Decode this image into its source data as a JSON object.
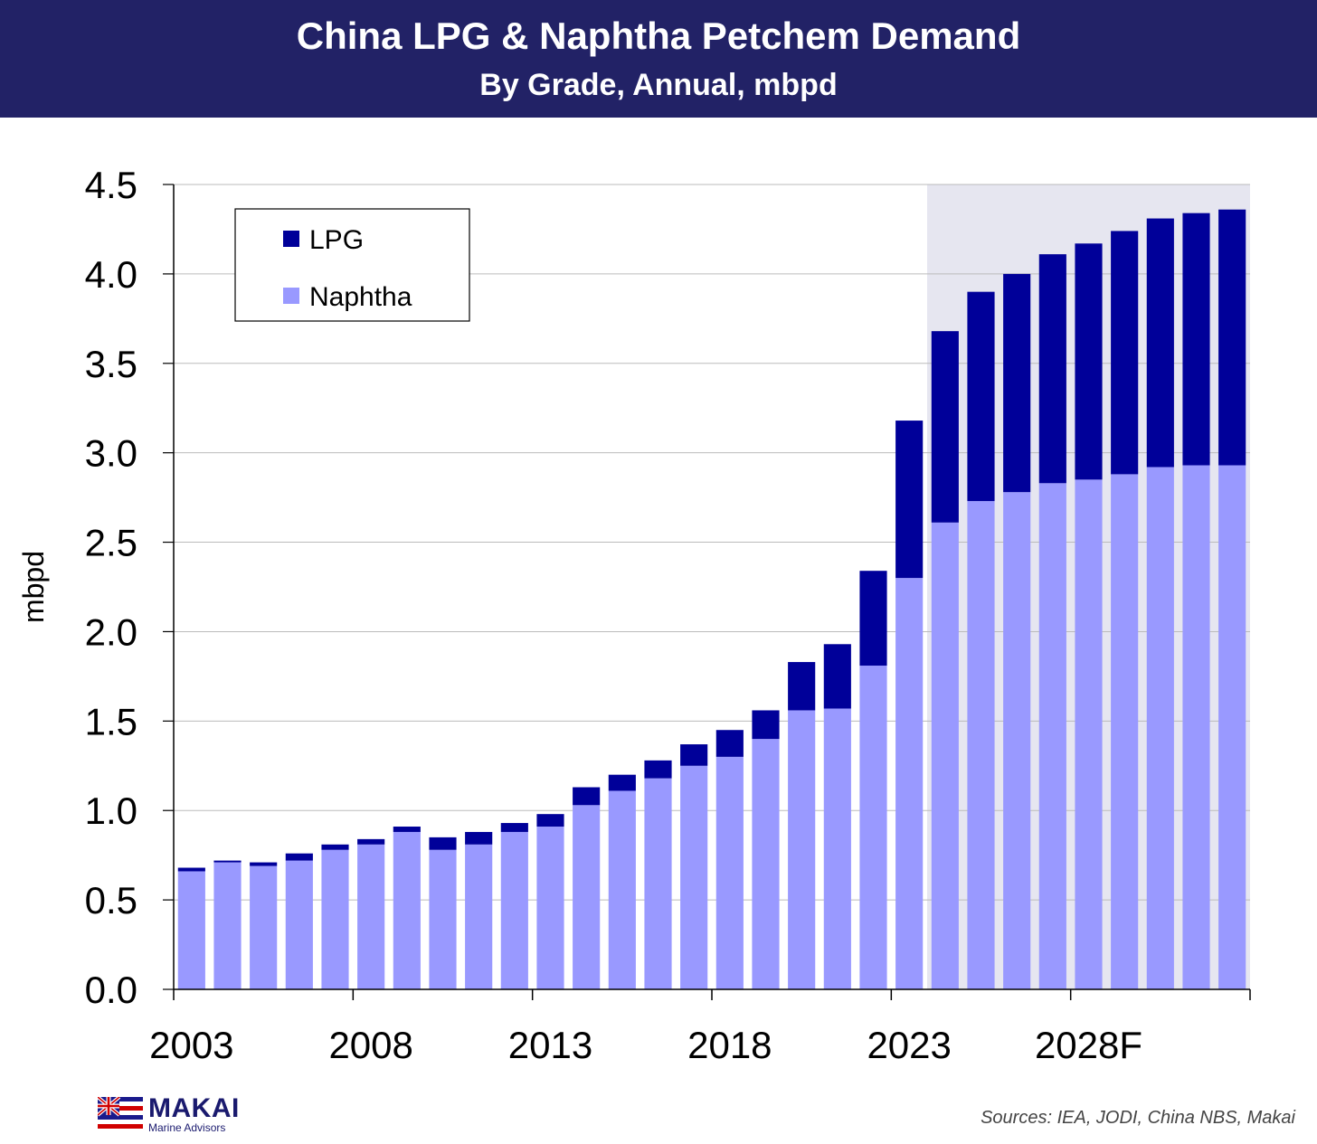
{
  "header": {
    "title": "China LPG & Naphtha Petchem Demand",
    "subtitle": "By Grade, Annual, mbpd"
  },
  "footer": {
    "logo_name": "MAKAI",
    "logo_sub": "Marine Advisors",
    "sources": "Sources: IEA, JODI, China NBS, Makai"
  },
  "colors": {
    "banner": "#222266",
    "lpg": "#000099",
    "naphtha": "#9999ff",
    "forecast_shade": "#e6e6f0",
    "grid": "#bbbbbb"
  },
  "chart_data": {
    "type": "bar",
    "stacked": true,
    "categories": [
      "2003",
      "2004",
      "2005",
      "2006",
      "2007",
      "2008",
      "2009",
      "2010",
      "2011",
      "2012",
      "2013",
      "2014",
      "2015",
      "2016",
      "2017",
      "2018",
      "2019",
      "2020",
      "2021",
      "2022",
      "2023",
      "2024",
      "2025",
      "2026",
      "2027",
      "2028",
      "2029",
      "2030",
      "2031",
      "2032"
    ],
    "tick_labels": [
      "2003",
      "2008",
      "2013",
      "2018",
      "2023",
      "2028F"
    ],
    "series": [
      {
        "name": "Naphtha",
        "color": "#9999ff",
        "values": [
          0.66,
          0.71,
          0.69,
          0.72,
          0.78,
          0.81,
          0.88,
          0.78,
          0.81,
          0.88,
          0.91,
          1.03,
          1.11,
          1.18,
          1.25,
          1.3,
          1.4,
          1.56,
          1.57,
          1.81,
          2.3,
          2.61,
          2.73,
          2.78,
          2.83,
          2.85,
          2.88,
          2.92,
          2.93,
          2.93
        ]
      },
      {
        "name": "LPG",
        "color": "#000099",
        "values": [
          0.02,
          0.01,
          0.02,
          0.04,
          0.03,
          0.03,
          0.03,
          0.07,
          0.07,
          0.05,
          0.07,
          0.1,
          0.09,
          0.1,
          0.12,
          0.15,
          0.16,
          0.27,
          0.36,
          0.53,
          0.88,
          1.07,
          1.17,
          1.22,
          1.28,
          1.32,
          1.36,
          1.39,
          1.41,
          1.43
        ]
      }
    ],
    "ylabel": "mbpd",
    "ylim": [
      0,
      4.5
    ],
    "yticks": [
      "0.0",
      "0.5",
      "1.0",
      "1.5",
      "2.0",
      "2.5",
      "3.0",
      "3.5",
      "4.0",
      "4.5"
    ],
    "forecast_start": "2024",
    "grid": true,
    "legend_position": "top-left",
    "legend_order": [
      "LPG",
      "Naphtha"
    ]
  }
}
